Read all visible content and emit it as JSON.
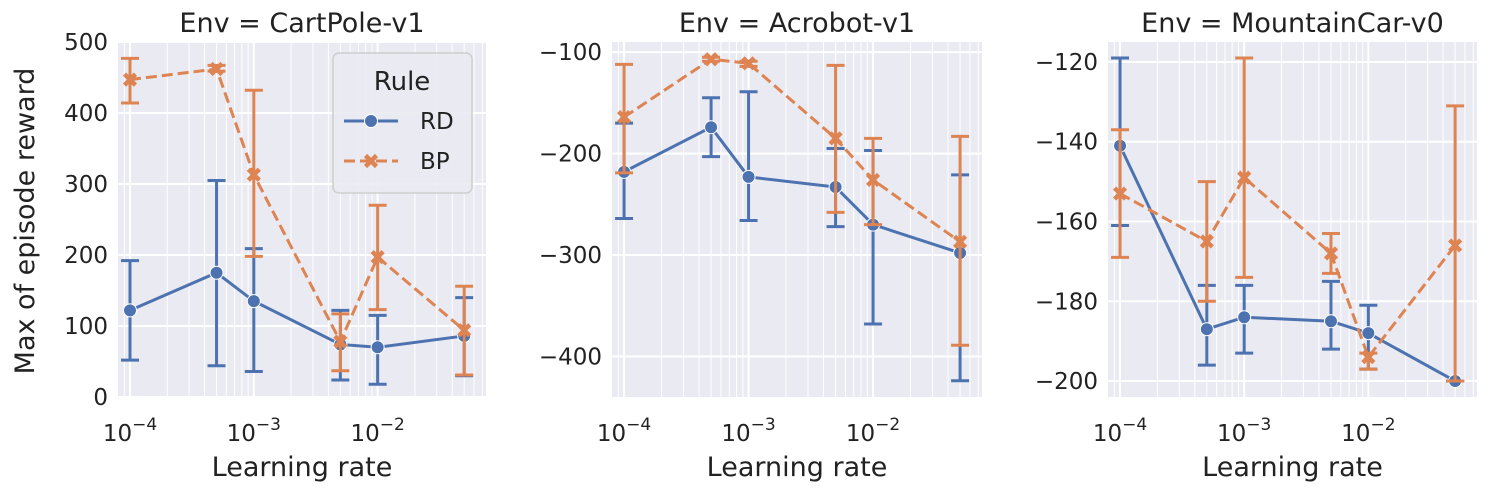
{
  "figure": {
    "ylabel": "Max of episode reward",
    "legend": {
      "title": "Rule",
      "placement": "top-right of first panel",
      "entries": [
        "RD",
        "BP"
      ]
    },
    "colors": {
      "background": "#eaeaf2",
      "grid": "#ffffff",
      "RD": "#4c72b0",
      "BP": "#dd8452"
    }
  },
  "chart_data": [
    {
      "type": "line",
      "title": "Env = CartPole-v1",
      "xlabel": "Learning rate",
      "ylabel": "Max of episode reward",
      "xscale": "log",
      "xlim": [
        8e-05,
        0.075
      ],
      "ylim": [
        0,
        500
      ],
      "yticks": [
        0,
        100,
        200,
        300,
        400,
        500
      ],
      "xticks": [
        "10^-4",
        "10^-3",
        "10^-2"
      ],
      "grid": true,
      "x": [
        0.0001,
        0.0005,
        0.001,
        0.005,
        0.01,
        0.05
      ],
      "series": [
        {
          "name": "RD",
          "values": [
            122,
            175,
            135,
            74,
            70,
            86
          ],
          "err_low": [
            52,
            44,
            36,
            24,
            18,
            30
          ],
          "err_high": [
            192,
            305,
            209,
            122,
            115,
            140
          ]
        },
        {
          "name": "BP",
          "values": [
            447,
            462,
            313,
            78,
            197,
            94
          ],
          "err_low": [
            414,
            459,
            198,
            37,
            123,
            31
          ],
          "err_high": [
            477,
            467,
            432,
            117,
            270,
            156
          ]
        }
      ]
    },
    {
      "type": "line",
      "title": "Env = Acrobot-v1",
      "xlabel": "Learning rate",
      "xscale": "log",
      "xlim": [
        8e-05,
        0.075
      ],
      "ylim": [
        -440,
        -90
      ],
      "yticks": [
        -400,
        -300,
        -200,
        -100
      ],
      "xticks": [
        "10^-4",
        "10^-3",
        "10^-2"
      ],
      "grid": true,
      "x": [
        0.0001,
        0.0005,
        0.001,
        0.005,
        0.01,
        0.05
      ],
      "series": [
        {
          "name": "RD",
          "values": [
            -218,
            -174,
            -223,
            -233,
            -270,
            -298
          ],
          "err_low": [
            -264,
            -203,
            -266,
            -272,
            -368,
            -424
          ],
          "err_high": [
            -170,
            -145,
            -139,
            -195,
            -197,
            -221
          ]
        },
        {
          "name": "BP",
          "values": [
            -164,
            -107,
            -111,
            -185,
            -226,
            -287
          ],
          "err_low": [
            -219,
            -109,
            -114,
            -258,
            -270,
            -389
          ],
          "err_high": [
            -112,
            -105,
            -109,
            -113,
            -185,
            -183
          ]
        }
      ]
    },
    {
      "type": "line",
      "title": "Env = MountainCar-v0",
      "xlabel": "Learning rate",
      "xscale": "log",
      "xlim": [
        8e-05,
        0.075
      ],
      "ylim": [
        -204,
        -115
      ],
      "yticks": [
        -200,
        -180,
        -160,
        -140,
        -120
      ],
      "xticks": [
        "10^-4",
        "10^-3",
        "10^-2"
      ],
      "grid": true,
      "x": [
        0.0001,
        0.0005,
        0.001,
        0.005,
        0.01,
        0.05
      ],
      "series": [
        {
          "name": "RD",
          "values": [
            -141,
            -187,
            -184,
            -185,
            -188,
            -200
          ],
          "err_low": [
            -161,
            -196,
            -193,
            -192,
            -197,
            -200
          ],
          "err_high": [
            -119,
            -176,
            -176,
            -175,
            -181,
            -200
          ]
        },
        {
          "name": "BP",
          "values": [
            -153,
            -165,
            -149,
            -168,
            -194,
            -166
          ],
          "err_low": [
            -169,
            -180,
            -174,
            -173,
            -197,
            -200
          ],
          "err_high": [
            -137,
            -150,
            -119,
            -163,
            -193,
            -131
          ]
        }
      ]
    }
  ]
}
